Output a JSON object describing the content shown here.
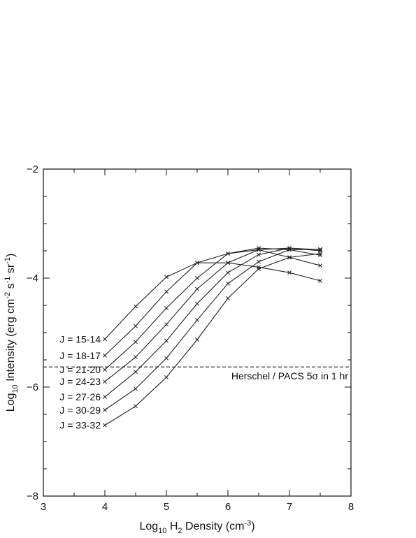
{
  "chart_data": {
    "type": "line",
    "title": "",
    "xlabel": {
      "pre": "Log",
      "sub": "10",
      "mid": " H",
      "sub2": "2",
      "post": " Density (cm",
      "sup": "-3",
      "end": ")"
    },
    "ylabel": {
      "pre": "Log",
      "sub": "10",
      "post": " Intensity (erg cm",
      "sup1": "-2",
      "mid1": " s",
      "sup2": "-1",
      "mid2": " sr",
      "sup3": "-1",
      "end": ")"
    },
    "xlim": [
      3,
      8
    ],
    "ylim": [
      -8,
      -2
    ],
    "xticks": [
      3,
      4,
      5,
      6,
      7,
      8
    ],
    "xtick_labels": [
      "3",
      "4",
      "5",
      "6",
      "7",
      "8"
    ],
    "yticks": [
      -8,
      -6,
      -4,
      -2
    ],
    "ytick_labels": [
      "−8",
      "−6",
      "−4",
      "−2"
    ],
    "y_minor_step": 0.5,
    "x_minor_step": 0.5,
    "x": [
      4.0,
      4.5,
      5.0,
      5.5,
      6.0,
      6.5,
      7.0,
      7.5
    ],
    "series": [
      {
        "name": "J = 15-14",
        "values": [
          -5.12,
          -4.52,
          -3.98,
          -3.72,
          -3.72,
          -3.8,
          -3.9,
          -4.05
        ]
      },
      {
        "name": "J = 18-17",
        "values": [
          -5.42,
          -4.88,
          -4.25,
          -3.72,
          -3.55,
          -3.48,
          -3.62,
          -3.77
        ]
      },
      {
        "name": "J = 21-20",
        "values": [
          -5.68,
          -5.17,
          -4.55,
          -4.0,
          -3.55,
          -3.45,
          -3.48,
          -3.58
        ]
      },
      {
        "name": "J = 24-23",
        "values": [
          -5.9,
          -5.45,
          -4.85,
          -4.2,
          -3.72,
          -3.48,
          -3.45,
          -3.5
        ]
      },
      {
        "name": "J = 27-26",
        "values": [
          -6.18,
          -5.72,
          -5.15,
          -4.47,
          -3.9,
          -3.57,
          -3.45,
          -3.48
        ]
      },
      {
        "name": "J = 30-29",
        "values": [
          -6.42,
          -6.03,
          -5.47,
          -4.77,
          -4.1,
          -3.7,
          -3.48,
          -3.47
        ]
      },
      {
        "name": "J = 33-32",
        "values": [
          -6.7,
          -6.35,
          -5.82,
          -5.13,
          -4.37,
          -3.83,
          -3.62,
          -3.55
        ]
      }
    ],
    "reference_line": {
      "y": -5.63,
      "label": "Herschel / PACS 5σ in 1 hr",
      "style": "dashed"
    },
    "grid": false,
    "legend": "none"
  }
}
